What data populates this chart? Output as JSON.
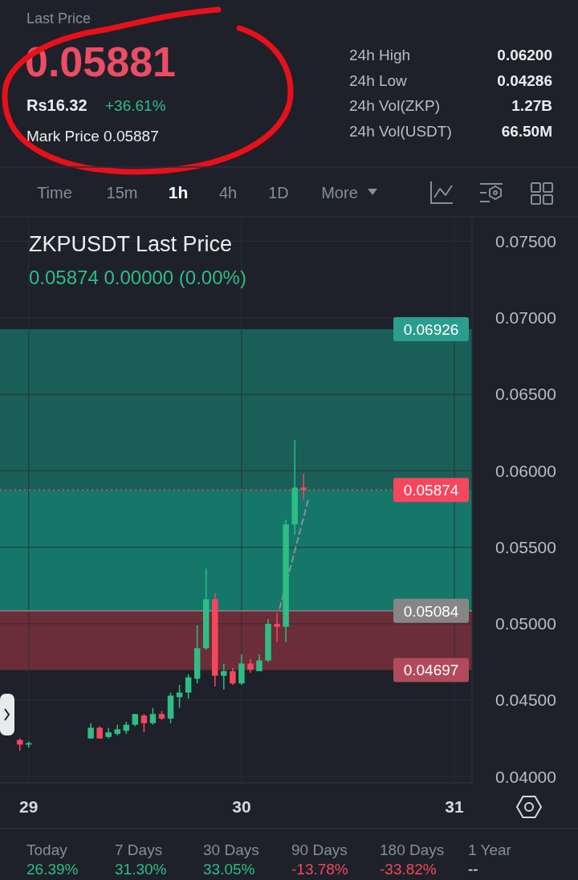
{
  "chart_data": [
    {
      "type": "other",
      "annotations": [
        "Last Price",
        "0.05881",
        "Rs16.32",
        "+36.61%",
        "Mark Price 0.05887",
        "24h High",
        "0.06200",
        "24h Low",
        "0.04286",
        "24h Vol(ZKP)",
        "1.27B",
        "24h Vol(USDT)",
        "66.50M",
        "Time",
        "15m",
        "1h",
        "4h",
        "1D",
        "More"
      ]
    },
    {
      "type": "candlestick",
      "title": "ZKPUSDT Last Price",
      "subtitle": "0.05874 0.00000 (0.00%)",
      "x": [
        28.9583,
        29,
        29.2917,
        29.3333,
        29.375,
        29.4167,
        29.4583,
        29.5,
        29.5417,
        29.5833,
        29.625,
        29.6667,
        29.7083,
        29.75,
        29.7917,
        29.8333,
        29.875,
        29.9167,
        29.9583,
        30,
        30.0417,
        30.0833,
        30.125,
        30.1667,
        30.2083,
        30.25,
        30.2917
      ],
      "ohlc": [
        [
          0.0424,
          0.0425,
          0.0417,
          0.0421
        ],
        [
          0.0421,
          0.0423,
          0.0419,
          0.0422
        ],
        [
          0.0425,
          0.0435,
          0.0425,
          0.0432
        ],
        [
          0.0432,
          0.0433,
          0.0425,
          0.0425
        ],
        [
          0.0426,
          0.0432,
          0.0425,
          0.0429
        ],
        [
          0.0428,
          0.0434,
          0.0427,
          0.0431
        ],
        [
          0.043,
          0.0436,
          0.0428,
          0.0434
        ],
        [
          0.0434,
          0.0441,
          0.0433,
          0.0441
        ],
        [
          0.044,
          0.0441,
          0.0429,
          0.0435
        ],
        [
          0.0435,
          0.0445,
          0.0434,
          0.0441
        ],
        [
          0.0441,
          0.0443,
          0.0437,
          0.0438
        ],
        [
          0.0438,
          0.0455,
          0.0435,
          0.0453
        ],
        [
          0.0452,
          0.046,
          0.0445,
          0.0455
        ],
        [
          0.0455,
          0.0467,
          0.0451,
          0.0465
        ],
        [
          0.0464,
          0.0499,
          0.0461,
          0.0484
        ],
        [
          0.0484,
          0.0536,
          0.0483,
          0.0516
        ],
        [
          0.0516,
          0.052,
          0.0459,
          0.0466
        ],
        [
          0.0466,
          0.0474,
          0.0457,
          0.0469
        ],
        [
          0.0469,
          0.0471,
          0.046,
          0.0461
        ],
        [
          0.0461,
          0.048,
          0.046,
          0.0474
        ],
        [
          0.0474,
          0.0477,
          0.0468,
          0.047
        ],
        [
          0.0469,
          0.048,
          0.0469,
          0.0476
        ],
        [
          0.0476,
          0.0503,
          0.0475,
          0.05
        ],
        [
          0.05,
          0.0507,
          0.0488,
          0.0498
        ],
        [
          0.0498,
          0.0568,
          0.0488,
          0.0565
        ],
        [
          0.0565,
          0.062,
          0.0558,
          0.0589
        ],
        [
          0.0589,
          0.0598,
          0.0581,
          0.05874
        ]
      ],
      "colors": [
        "#f6465d",
        "#2ebd85",
        "#2ebd85",
        "#f6465d",
        "#2ebd85",
        "#2ebd85",
        "#2ebd85",
        "#2ebd85",
        "#f6465d",
        "#2ebd85",
        "#f6465d",
        "#2ebd85",
        "#2ebd85",
        "#2ebd85",
        "#2ebd85",
        "#2ebd85",
        "#f6465d",
        "#2ebd85",
        "#f6465d",
        "#2ebd85",
        "#f6465d",
        "#2ebd85",
        "#2ebd85",
        "#f6465d",
        "#2ebd85",
        "#2ebd85",
        "#f6465d"
      ],
      "xlim": [
        28.865,
        31.083
      ],
      "xticks": [
        29,
        30,
        31
      ],
      "ylim": [
        0.0396,
        0.0765
      ],
      "yticks": [
        {
          "value": 0.04,
          "label": "0.04000"
        },
        {
          "value": 0.045,
          "label": "0.04500"
        },
        {
          "value": 0.05,
          "label": "0.05000"
        },
        {
          "value": 0.055,
          "label": "0.05500"
        },
        {
          "value": 0.06,
          "label": "0.06000"
        },
        {
          "value": 0.065,
          "label": "0.06500"
        },
        {
          "value": 0.07,
          "label": "0.07000"
        },
        {
          "value": 0.075,
          "label": "0.07500"
        }
      ],
      "grid": true,
      "bands": [
        {
          "axis": "y",
          "from": 0.05084,
          "to": 0.06926,
          "label": "0.06926",
          "color": "#1a5f57"
        },
        {
          "axis": "y",
          "from": 0.05084,
          "to": 0.05874,
          "color": "#14776a"
        },
        {
          "axis": "y",
          "from": 0.05084,
          "to": 0.04697,
          "label": "0.04697",
          "color": "#6b2d38"
        }
      ],
      "ref_lines": [
        {
          "axis": "y",
          "value": 0.05874,
          "label": "0.05874",
          "color": "#f6465d",
          "line_style": "dotted"
        },
        {
          "axis": "y",
          "value": 0.05084,
          "label": "0.05084",
          "color": "#868686"
        }
      ],
      "series": [
        {
          "type": "line",
          "x": [
            30.179,
            30.317
          ],
          "values": [
            0.051,
            0.0583
          ],
          "color": "#8a9099",
          "line_style": "dashed"
        }
      ]
    },
    {
      "type": "other",
      "categories": [
        "Today",
        "7 Days",
        "30 Days",
        "90 Days",
        "180 Days",
        "1 Year"
      ],
      "value_labels": [
        "26.39%",
        "31.30%",
        "33.05%",
        "-13.78%",
        "-33.82%",
        "--"
      ],
      "colors": [
        "#2ebd85",
        "#2ebd85",
        "#2ebd85",
        "#f6465d",
        "#f6465d",
        "#eaecef"
      ]
    }
  ]
}
